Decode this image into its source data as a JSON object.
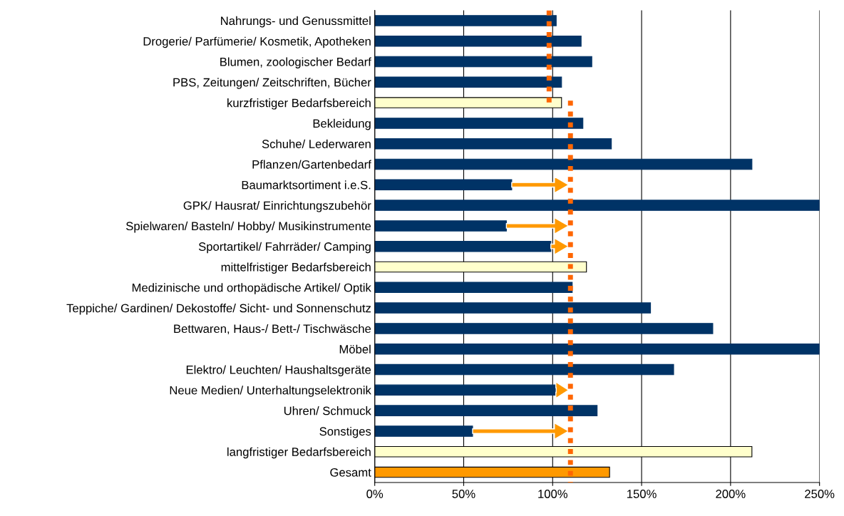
{
  "chart_data": {
    "type": "bar",
    "orientation": "horizontal",
    "categories": [
      "Nahrungs- und Genussmittel",
      "Drogerie/ Parfümerie/ Kosmetik, Apotheken",
      "Blumen, zoologischer Bedarf",
      "PBS, Zeitungen/ Zeitschriften, Bücher",
      "kurzfristiger Bedarfsbereich",
      "Bekleidung",
      "Schuhe/ Lederwaren",
      "Pflanzen/Gartenbedarf",
      "Baumarktsortiment i.e.S.",
      "GPK/ Hausrat/ Einrichtungszubehör",
      "Spielwaren/ Basteln/ Hobby/ Musikinstrumente",
      "Sportartikel/ Fahrräder/ Camping",
      "mittelfristiger Bedarfsbereich",
      "Medizinische und orthopädische Artikel/ Optik",
      "Teppiche/ Gardinen/ Dekostoffe/ Sicht- und Sonnenschutz",
      "Bettwaren, Haus-/ Bett-/ Tischwäsche",
      "Möbel",
      "Elektro/ Leuchten/ Haushaltsgeräte",
      "Neue Medien/ Unterhaltungselektronik",
      "Uhren/ Schmuck",
      "Sonstiges",
      "langfristiger Bedarfsbereich",
      "Gesamt"
    ],
    "values": [
      102,
      116,
      122,
      105,
      105,
      117,
      133,
      212,
      77,
      250,
      74,
      99,
      119,
      111,
      155,
      190,
      250,
      168,
      102,
      125,
      55,
      212,
      132
    ],
    "colors": [
      "#003366",
      "#003366",
      "#003366",
      "#003366",
      "#ffffcc",
      "#003366",
      "#003366",
      "#003366",
      "#003366",
      "#003366",
      "#003366",
      "#003366",
      "#ffffcc",
      "#003366",
      "#003366",
      "#003366",
      "#003366",
      "#003366",
      "#003366",
      "#003366",
      "#003366",
      "#ffffcc",
      "#ff9900"
    ],
    "xlim": [
      0,
      250
    ],
    "xticks": [
      {
        "value": 0,
        "label": "0%"
      },
      {
        "value": 50,
        "label": "50%"
      },
      {
        "value": 100,
        "label": "100%"
      },
      {
        "value": 150,
        "label": "150%"
      },
      {
        "value": 200,
        "label": "200%"
      },
      {
        "value": 250,
        "label": "250%"
      }
    ],
    "grid": "x",
    "ref_lines": [
      {
        "axis": "x",
        "value": 98,
        "color": "#ff6600",
        "line_style": "dotted"
      },
      {
        "axis": "x",
        "value": 110,
        "color": "#ff6600",
        "line_style": "dotted"
      }
    ]
  }
}
